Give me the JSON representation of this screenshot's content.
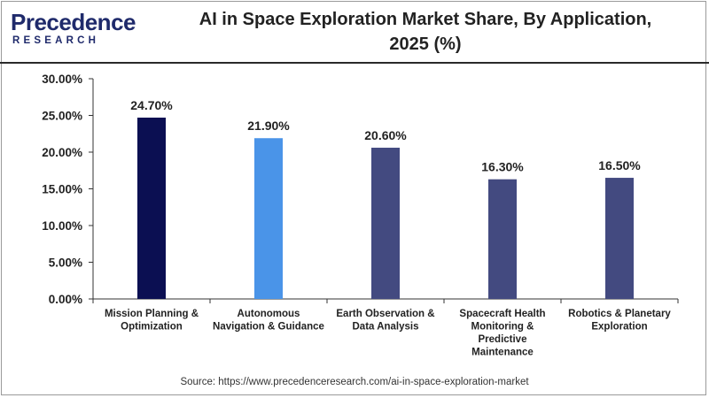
{
  "header": {
    "logo_main": "Precedence",
    "logo_sub": "RESEARCH",
    "title_line1": "AI in Space Exploration Market Share, By Application,",
    "title_line2": "2025 (%)"
  },
  "footer": {
    "source": "Source: https://www.precedenceresearch.com/ai-in-space-exploration-market"
  },
  "colors": {
    "bar_colors": [
      "#0b0f52",
      "#4a94e8",
      "#434a80",
      "#434a80",
      "#434a80"
    ],
    "axis": "#333333",
    "text": "#222222"
  },
  "chart_data": {
    "type": "bar",
    "title": "AI in Space Exploration Market Share, By Application, 2025 (%)",
    "xlabel": "",
    "ylabel": "",
    "ylim": [
      0,
      30
    ],
    "yticks": [
      0,
      5,
      10,
      15,
      20,
      25,
      30
    ],
    "ytick_labels": [
      "0.00%",
      "5.00%",
      "10.00%",
      "15.00%",
      "20.00%",
      "25.00%",
      "30.00%"
    ],
    "categories": [
      [
        "Mission Planning &",
        "Optimization"
      ],
      [
        "Autonomous",
        "Navigation & Guidance"
      ],
      [
        "Earth Observation &",
        "Data Analysis"
      ],
      [
        "Spacecraft Health",
        "Monitoring &",
        "Predictive",
        "Maintenance"
      ],
      [
        "Robotics & Planetary",
        "Exploration"
      ]
    ],
    "values": [
      24.7,
      21.9,
      20.6,
      16.3,
      16.5
    ],
    "value_labels": [
      "24.70%",
      "21.90%",
      "20.60%",
      "16.30%",
      "16.50%"
    ],
    "grid": false
  }
}
